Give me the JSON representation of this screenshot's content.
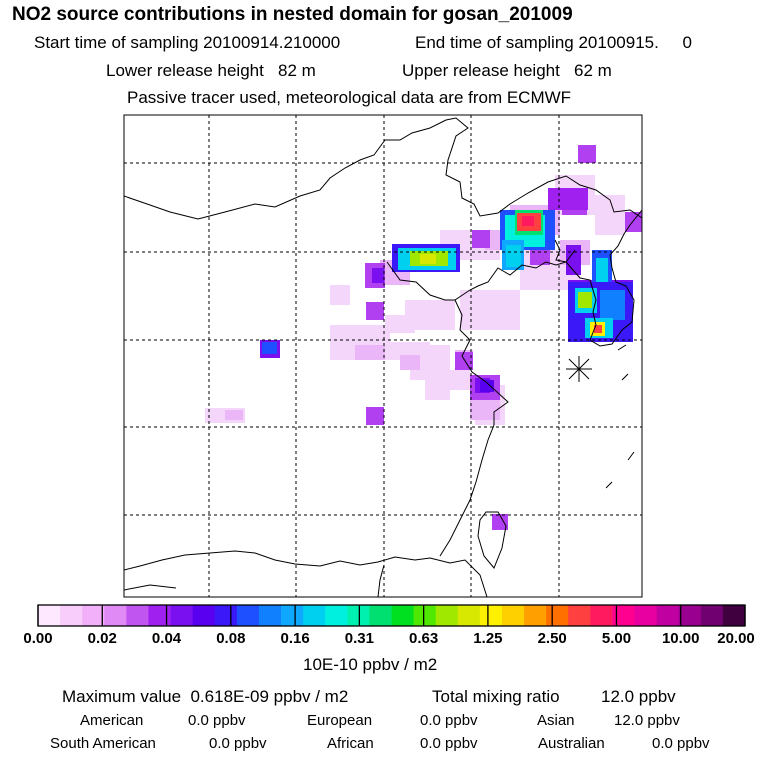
{
  "header": {
    "title": "NO2 source contributions in nested domain for gosan_201009",
    "start_label": "Start time of sampling 20100914.210000",
    "end_label": "End time of sampling 20100915.     0",
    "lower_label": "Lower release height   82 m",
    "upper_label": "Upper release height   62 m",
    "tracer_label": "Passive tracer used, meteorological data are from ECMWF"
  },
  "colorbar": {
    "colors": [
      "#fde8ff",
      "#f8cdfc",
      "#f2b0fa",
      "#e08af5",
      "#c055ef",
      "#a020f0",
      "#7a10f0",
      "#5a00f0",
      "#3a18f8",
      "#1e50ff",
      "#1080ff",
      "#10a8ff",
      "#00d0f0",
      "#00f0e0",
      "#00f0b0",
      "#00e070",
      "#00e020",
      "#50e800",
      "#a0e800",
      "#d8e800",
      "#fff000",
      "#ffd000",
      "#ffa000",
      "#ff7000",
      "#ff4040",
      "#ff1a60",
      "#ff0090",
      "#e800a0",
      "#c000a0",
      "#9a0090",
      "#700070",
      "#400040"
    ],
    "labels": [
      "0.00",
      "0.02",
      "0.04",
      "0.08",
      "0.16",
      "0.31",
      "0.63",
      "1.25",
      "2.50",
      "5.00",
      "10.00",
      "20.00"
    ],
    "units": "10E-10 ppbv / m2"
  },
  "summary": {
    "max_label": "Maximum value  0.618E-09 ppbv / m2",
    "total_label": "Total mixing ratio",
    "total_value": "12.0 ppbv",
    "american": "American",
    "american_value": "0.0 ppbv",
    "european": "European",
    "european_value": "0.0 ppbv",
    "asian": "Asian",
    "asian_value": "12.0 ppbv",
    "south_american": "South American",
    "south_american_value": "0.0 ppbv",
    "african": "African",
    "african_value": "0.0 ppbv",
    "australian": "Australian",
    "australian_value": "0.0 ppbv"
  },
  "colors": {
    "frame": "#000000",
    "grid": "#000000"
  }
}
